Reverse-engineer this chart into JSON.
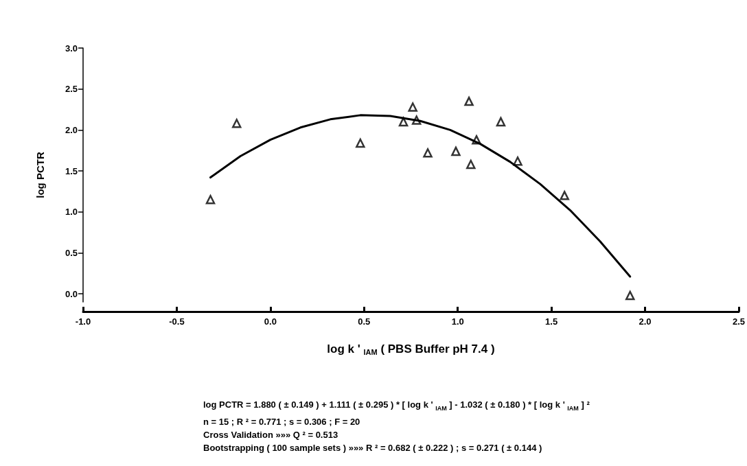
{
  "chart_data": {
    "type": "scatter",
    "xlabel": "log k ' $_{IAM}$ ( PBS Buffer pH 7.4 )",
    "ylabel": "log PCTR",
    "xlim": [
      -1.0,
      2.5
    ],
    "xticks": [
      {
        "value": -1.0,
        "label": "-1.0"
      },
      {
        "value": -0.5,
        "label": "-0.5"
      },
      {
        "value": 0,
        "label": "0.0"
      },
      {
        "value": 0.5,
        "label": "0.5"
      },
      {
        "value": 1.0,
        "label": "1.0"
      },
      {
        "value": 1.5,
        "label": "1.5"
      },
      {
        "value": 2.0,
        "label": "2.0"
      },
      {
        "value": 2.5,
        "label": "2.5"
      }
    ],
    "ylim": [
      -0.1,
      3.0
    ],
    "yticks": [
      {
        "value": 0,
        "label": "0.0"
      },
      {
        "value": 0.5,
        "label": "0.5"
      },
      {
        "value": 1.0,
        "label": "1.0"
      },
      {
        "value": 1.5,
        "label": "1.5"
      },
      {
        "value": 2.0,
        "label": "2.0"
      },
      {
        "value": 2.5,
        "label": "2.5"
      },
      {
        "value": 3.0,
        "label": "3.0"
      }
    ],
    "grid": false,
    "marker": "triangle",
    "series": [
      {
        "color": "#000000",
        "x": [
          -0.32,
          -0.18,
          0.48,
          0.71,
          0.76,
          0.78,
          0.84,
          0.99,
          1.06,
          1.07,
          1.1,
          1.23,
          1.32,
          1.57,
          1.92
        ],
        "values": [
          1.15,
          2.08,
          1.84,
          2.1,
          2.28,
          2.12,
          1.72,
          1.74,
          2.35,
          1.58,
          1.88,
          2.1,
          1.62,
          1.2,
          -0.02
        ]
      },
      {
        "type": "line",
        "color": "#000000",
        "marker": "none",
        "line_style": "solid",
        "x": [
          -0.32,
          -0.16,
          0,
          0.16,
          0.32,
          0.48,
          0.64,
          0.8,
          0.96,
          1.12,
          1.28,
          1.44,
          1.6,
          1.76,
          1.92
        ],
        "values": [
          1.42,
          1.68,
          1.88,
          2.03,
          2.13,
          2.18,
          2.17,
          2.11,
          2.0,
          1.83,
          1.61,
          1.34,
          1.02,
          0.64,
          0.21
        ]
      }
    ],
    "annotations": [
      "log PCTR = 1.880 ( ± 0.149 ) + 1.111 ( ± 0.295 ) * [ log k ' $_{IAM}$ ] - 1.032 ( ± 0.180 ) * [ log k ' $_{IAM}$ ] ²",
      "n = 15  ;  R ² = 0.771 ; s = 0.306  ;  F = 20",
      "Cross Validation »»» Q ² = 0.513",
      "Bootstrapping ( 100 sample sets ) »»» R ² = 0.682 ( ± 0.222 )  ;  s = 0.271 ( ± 0.144 )"
    ]
  }
}
